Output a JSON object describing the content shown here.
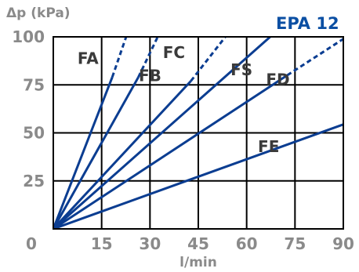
{
  "chart_data": {
    "type": "line",
    "title": "EPA 12",
    "xlabel": "l/min",
    "ylabel": "Δp (kPa)",
    "xlim": [
      0,
      90
    ],
    "ylim": [
      0,
      100
    ],
    "x_ticks": [
      "0",
      "15",
      "30",
      "45",
      "60",
      "75",
      "90"
    ],
    "y_ticks": [
      "25",
      "50",
      "75",
      "100"
    ],
    "grid": true,
    "series": [
      {
        "name": "FA",
        "solid": [
          [
            0,
            0
          ],
          [
            18.3,
            79
          ]
        ],
        "dashed": [
          [
            18.3,
            79
          ],
          [
            22.6,
            100
          ]
        ]
      },
      {
        "name": "FB",
        "solid": [
          [
            0,
            0
          ],
          [
            26.4,
            79
          ]
        ],
        "dashed": [
          [
            26.4,
            79
          ],
          [
            32.4,
            100
          ]
        ]
      },
      {
        "name": "FC",
        "solid": [
          [
            0,
            0
          ],
          [
            42.7,
            77
          ]
        ],
        "dashed": [
          [
            42.7,
            77
          ],
          [
            53.4,
            100
          ]
        ]
      },
      {
        "name": "FS",
        "solid": [
          [
            0,
            0
          ],
          [
            67.3,
            100
          ]
        ]
      },
      {
        "name": "FD",
        "solid": [
          [
            0,
            0
          ],
          [
            72.6,
            80
          ]
        ],
        "dashed": [
          [
            72.6,
            80
          ],
          [
            91,
            100
          ]
        ]
      },
      {
        "name": "FE",
        "solid": [
          [
            0,
            0
          ],
          [
            91,
            55
          ]
        ]
      }
    ],
    "colors": {
      "line": "#0b3d91",
      "title": "#0b4fa3",
      "grid": "#000000",
      "text": "#8a8a8a"
    }
  }
}
